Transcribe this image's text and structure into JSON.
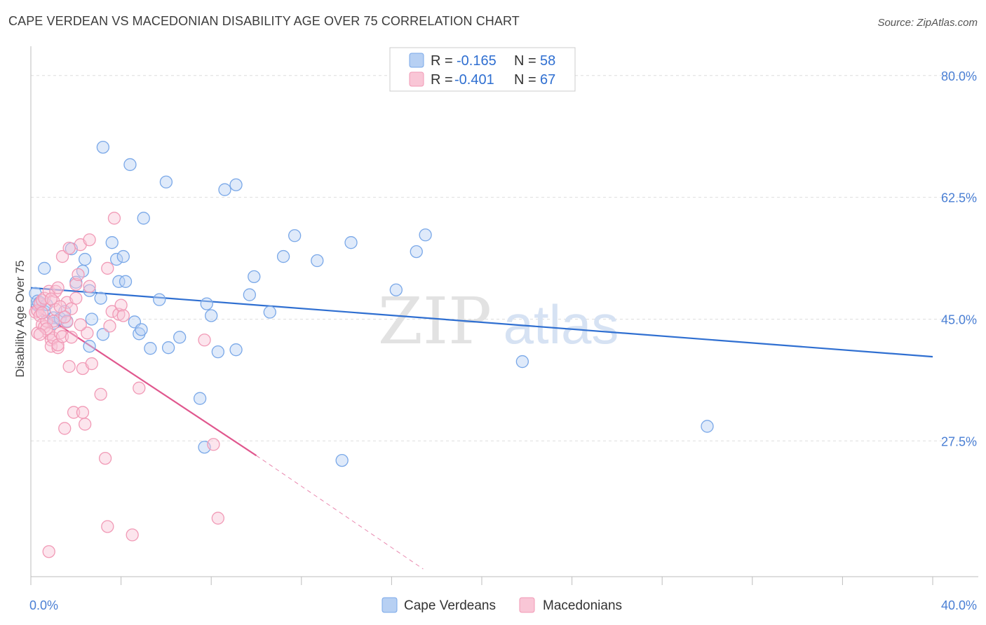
{
  "header": {
    "title": "CAPE VERDEAN VS MACEDONIAN DISABILITY AGE OVER 75 CORRELATION CHART",
    "source": "Source: ZipAtlas.com"
  },
  "watermark": {
    "zip": "ZIP",
    "atlas": "atlas"
  },
  "chart_data": {
    "type": "scatter",
    "title": "CAPE VERDEAN VS MACEDONIAN DISABILITY AGE OVER 75 CORRELATION CHART",
    "xlabel": "",
    "ylabel": "Disability Age Over 75",
    "xlim": [
      0,
      40
    ],
    "ylim": [
      8,
      83
    ],
    "x_tick_labels": [
      {
        "value": 0,
        "label": "0.0%"
      },
      {
        "value": 40,
        "label": "40.0%"
      }
    ],
    "y_ticks": [
      {
        "value": 27.5,
        "label": "27.5%"
      },
      {
        "value": 45.0,
        "label": "45.0%"
      },
      {
        "value": 62.5,
        "label": "62.5%"
      },
      {
        "value": 80.0,
        "label": "80.0%"
      }
    ],
    "legend": {
      "position": "top-center",
      "rows": [
        {
          "r_label": "R = ",
          "r_value": "-0.165",
          "n_label": "N = ",
          "n_value": "58"
        },
        {
          "r_label": "R = ",
          "r_value": "-0.401",
          "n_label": "N = ",
          "n_value": "67"
        }
      ]
    },
    "series": [
      {
        "name": "Cape Verdeans",
        "color": "#7aa8e8",
        "line_color": "#2f6fd1",
        "trend": {
          "x0": 0,
          "y0": 49.5,
          "x1": 40,
          "y1": 39.6
        },
        "points": [
          [
            0.2,
            48.7
          ],
          [
            0.3,
            47.0
          ],
          [
            0.3,
            47.6
          ],
          [
            0.4,
            47.4
          ],
          [
            0.6,
            46.1
          ],
          [
            0.6,
            52.3
          ],
          [
            0.7,
            47.1
          ],
          [
            1.0,
            45.2
          ],
          [
            1.0,
            44.4
          ],
          [
            1.3,
            45.1
          ],
          [
            1.5,
            46.1
          ],
          [
            1.6,
            44.7
          ],
          [
            1.8,
            55.1
          ],
          [
            2.0,
            50.3
          ],
          [
            2.3,
            51.9
          ],
          [
            2.4,
            53.6
          ],
          [
            2.6,
            41.1
          ],
          [
            2.6,
            49.1
          ],
          [
            2.7,
            45.0
          ],
          [
            3.1,
            48.0
          ],
          [
            3.2,
            42.8
          ],
          [
            3.2,
            69.7
          ],
          [
            3.6,
            56.0
          ],
          [
            3.8,
            53.6
          ],
          [
            3.9,
            50.4
          ],
          [
            4.1,
            54.0
          ],
          [
            4.2,
            50.4
          ],
          [
            4.4,
            67.2
          ],
          [
            4.6,
            44.6
          ],
          [
            4.8,
            42.9
          ],
          [
            4.9,
            43.5
          ],
          [
            5.0,
            59.5
          ],
          [
            5.3,
            40.8
          ],
          [
            5.7,
            47.8
          ],
          [
            6.0,
            64.7
          ],
          [
            6.1,
            40.9
          ],
          [
            6.6,
            42.4
          ],
          [
            7.5,
            33.6
          ],
          [
            7.7,
            26.6
          ],
          [
            7.8,
            47.2
          ],
          [
            8.0,
            45.5
          ],
          [
            8.3,
            40.3
          ],
          [
            8.6,
            63.6
          ],
          [
            9.1,
            64.3
          ],
          [
            9.1,
            40.6
          ],
          [
            9.7,
            48.5
          ],
          [
            9.9,
            51.1
          ],
          [
            10.6,
            46.0
          ],
          [
            11.2,
            54.0
          ],
          [
            11.7,
            57.0
          ],
          [
            12.7,
            53.4
          ],
          [
            13.8,
            24.7
          ],
          [
            14.2,
            56.0
          ],
          [
            16.2,
            49.2
          ],
          [
            17.1,
            54.7
          ],
          [
            17.5,
            57.1
          ],
          [
            21.8,
            38.9
          ],
          [
            30.0,
            29.6
          ]
        ]
      },
      {
        "name": "Macedonians",
        "color": "#f19ab6",
        "line_color": "#e0578e",
        "trend": {
          "x0": 0,
          "y0": 46.8,
          "x1": 10,
          "y1": 25.4
        },
        "trend_extension": {
          "x0": 10,
          "y0": 25.4,
          "x1": 17.4,
          "y1": 9.1
        },
        "points": [
          [
            0.2,
            46.0
          ],
          [
            0.3,
            46.2
          ],
          [
            0.3,
            43.0
          ],
          [
            0.4,
            45.5
          ],
          [
            0.4,
            47.2
          ],
          [
            0.5,
            44.2
          ],
          [
            0.5,
            47.7
          ],
          [
            0.6,
            48.0
          ],
          [
            0.6,
            43.9
          ],
          [
            0.7,
            44.7
          ],
          [
            0.8,
            42.9
          ],
          [
            0.8,
            49.0
          ],
          [
            0.9,
            42.0
          ],
          [
            0.9,
            41.1
          ],
          [
            1.0,
            42.3
          ],
          [
            1.0,
            44.7
          ],
          [
            1.0,
            47.6
          ],
          [
            1.1,
            49.0
          ],
          [
            1.2,
            49.5
          ],
          [
            1.2,
            40.9
          ],
          [
            1.2,
            41.3
          ],
          [
            1.3,
            43.0
          ],
          [
            1.4,
            54.0
          ],
          [
            1.4,
            42.5
          ],
          [
            1.5,
            29.3
          ],
          [
            1.6,
            47.4
          ],
          [
            1.6,
            44.6
          ],
          [
            1.7,
            38.2
          ],
          [
            1.7,
            55.2
          ],
          [
            1.8,
            42.4
          ],
          [
            1.8,
            46.5
          ],
          [
            1.9,
            31.6
          ],
          [
            2.0,
            50.0
          ],
          [
            2.1,
            51.4
          ],
          [
            2.2,
            55.7
          ],
          [
            2.3,
            31.6
          ],
          [
            2.3,
            37.9
          ],
          [
            2.4,
            29.9
          ],
          [
            2.5,
            43.0
          ],
          [
            2.6,
            49.7
          ],
          [
            2.6,
            56.4
          ],
          [
            2.7,
            38.6
          ],
          [
            3.1,
            34.2
          ],
          [
            3.3,
            25.0
          ],
          [
            3.4,
            52.3
          ],
          [
            3.4,
            15.2
          ],
          [
            3.5,
            44.0
          ],
          [
            3.6,
            46.1
          ],
          [
            3.7,
            59.5
          ],
          [
            3.9,
            45.7
          ],
          [
            4.0,
            47.0
          ],
          [
            4.1,
            45.5
          ],
          [
            4.5,
            14.0
          ],
          [
            4.8,
            35.1
          ],
          [
            7.7,
            42.0
          ],
          [
            8.1,
            27.0
          ],
          [
            8.3,
            16.4
          ],
          [
            0.8,
            11.6
          ],
          [
            1.1,
            46.4
          ],
          [
            0.5,
            45.9
          ],
          [
            1.3,
            46.8
          ],
          [
            2.0,
            48.0
          ],
          [
            0.9,
            47.9
          ],
          [
            1.5,
            45.3
          ],
          [
            0.7,
            43.6
          ],
          [
            2.2,
            44.2
          ],
          [
            0.4,
            42.8
          ]
        ]
      }
    ]
  }
}
